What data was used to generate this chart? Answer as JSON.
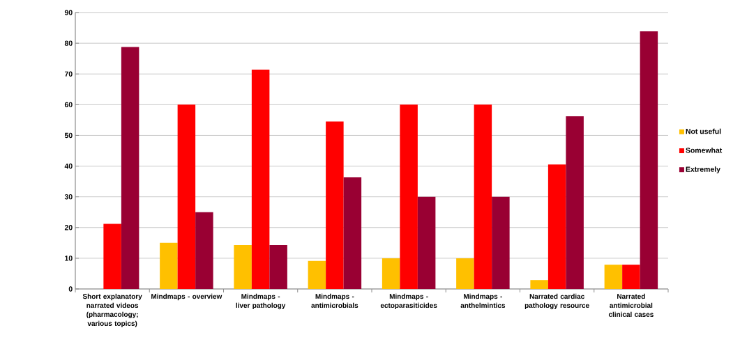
{
  "chart_data": {
    "type": "bar",
    "categories": [
      "Short explanatory narrated videos (pharmacology; various topics)",
      "Mindmaps - overview",
      "Mindmaps - liver pathology",
      "Mindmaps - antimicrobials",
      "Mindmaps - ectoparasiticides",
      "Mindmaps - anthelmintics",
      "Narrated cardiac pathology resource",
      "Narrated antimicrobial clinical cases"
    ],
    "series": [
      {
        "name": "Not useful",
        "color": "#ffc000",
        "values": [
          0,
          15,
          14.3,
          9.1,
          10,
          10,
          2.9,
          7.9
        ]
      },
      {
        "name": "Somewhat",
        "color": "#ff0000",
        "values": [
          21.2,
          60,
          71.4,
          54.5,
          60,
          60,
          40.5,
          7.9
        ]
      },
      {
        "name": "Extremely",
        "color": "#990033",
        "values": [
          78.8,
          25,
          14.3,
          36.4,
          30,
          30,
          56.2,
          83.9
        ]
      }
    ],
    "ylim": [
      0,
      90
    ],
    "yticks": [
      0,
      10,
      20,
      30,
      40,
      50,
      60,
      70,
      80,
      90
    ],
    "grid": "y",
    "legend": "right"
  }
}
